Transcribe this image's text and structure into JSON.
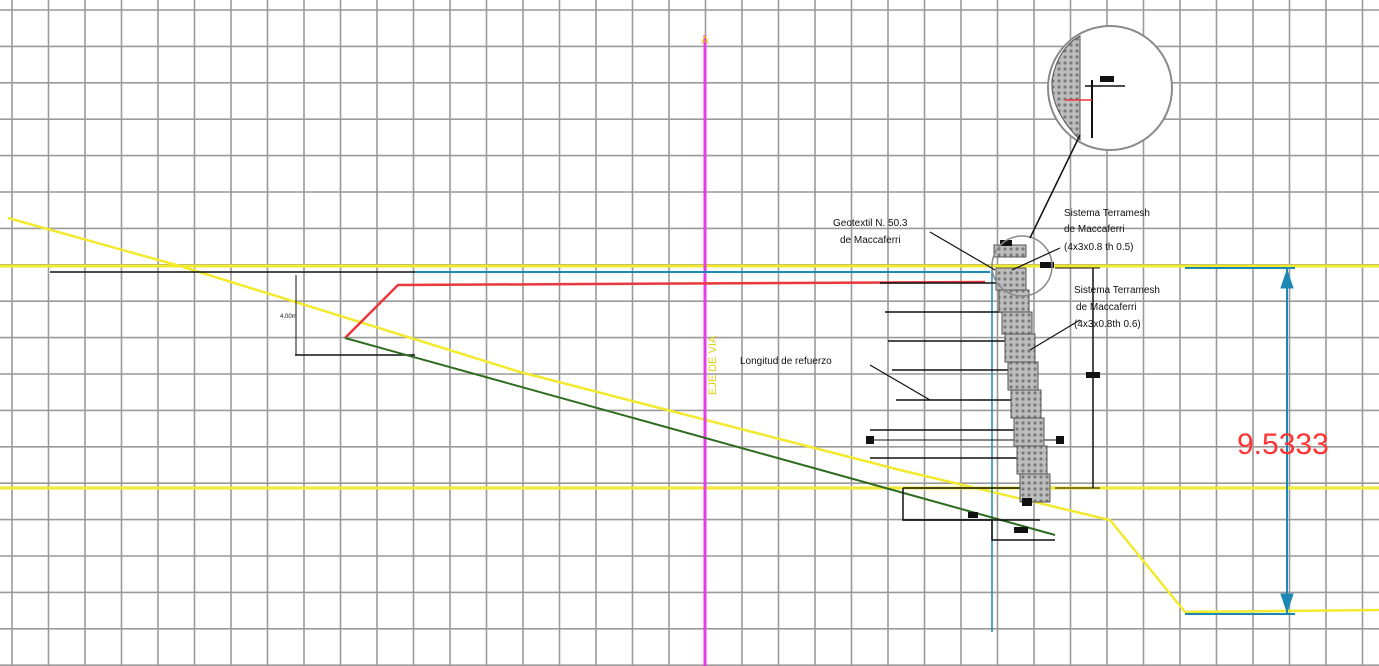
{
  "labels": {
    "geotextile_line1": "Geotextil N. 50.3",
    "geotextile_line2": "de Maccaferri",
    "terramesh_top_line1": "Sistema Terramesh",
    "terramesh_top_line2": "de Maccaferri",
    "terramesh_top_line3": "(4x3x0.8 th 0.5)",
    "terramesh_mid_line1": "Sistema Terramesh",
    "terramesh_mid_line2": "de Maccaferri",
    "terramesh_mid_line3": "(4x3x0.8th 0.6)",
    "reinforcement_length": "Longitud de refuerzo",
    "height_dimension": "9.5333",
    "small_dim_left": "4.00m",
    "axis_vertical": "EJE DE VIA",
    "axis_marker": "A"
  },
  "colors": {
    "grid": "#9a9a9a",
    "ground_line": "#f2ea2e",
    "axis_line": "#e83be8",
    "dimension": "#1e88b4",
    "red_line": "#e8383b",
    "green_line": "#2e6b1f",
    "wall": "#8a8a8a",
    "text_dim": "#ff3333"
  }
}
